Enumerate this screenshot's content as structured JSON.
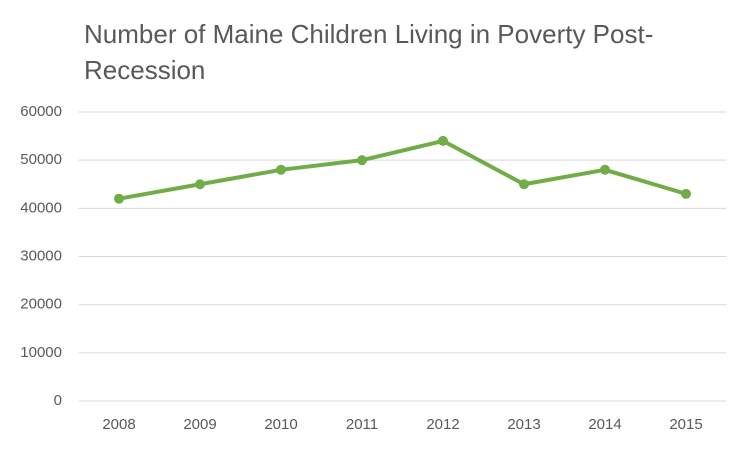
{
  "chart_data": {
    "type": "line",
    "title": "Number of Maine Children Living in Poverty Post-Recession",
    "categories": [
      "2008",
      "2009",
      "2010",
      "2011",
      "2012",
      "2013",
      "2014",
      "2015"
    ],
    "values": [
      42000,
      45000,
      48000,
      50000,
      54000,
      45000,
      48000,
      43000
    ],
    "color": "#70ad47",
    "ylim": [
      0,
      60000
    ],
    "yticks": [
      0,
      10000,
      20000,
      30000,
      40000,
      50000,
      60000
    ],
    "grid": true
  }
}
